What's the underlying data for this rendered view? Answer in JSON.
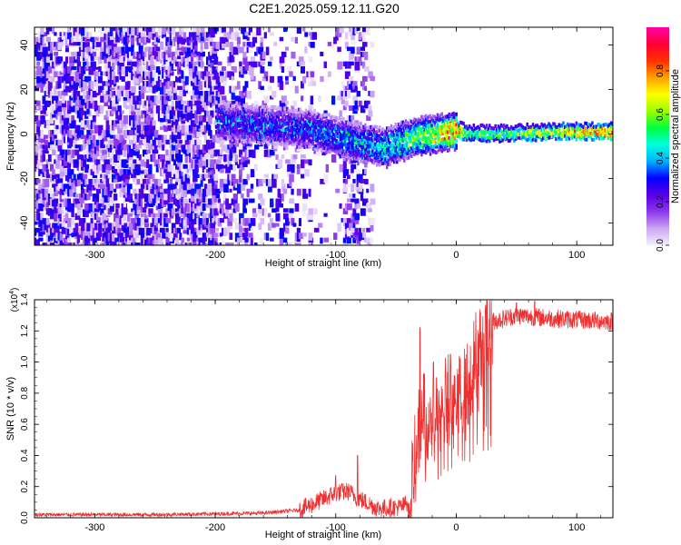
{
  "title": "C2E1.2025.059.12.11.G20",
  "chart_data": [
    {
      "type": "heatmap",
      "xlabel": "Height of straight line (km)",
      "ylabel": "Frequency (Hz)",
      "xlim": [
        -350,
        130
      ],
      "ylim": [
        -50,
        48
      ],
      "x_ticks": [
        -300,
        -200,
        -100,
        0,
        100
      ],
      "y_ticks": [
        -40,
        -20,
        0,
        20,
        40
      ],
      "colorbar": {
        "label": "Normalized spectral amplitude",
        "range": [
          0,
          1
        ],
        "ticks": [
          "0.0",
          "0.2",
          "0.4",
          "0.6",
          "0.8"
        ],
        "colors": [
          "#f4eefc",
          "#c9a6f3",
          "#8c37ec",
          "#5a00e6",
          "#0000ff",
          "#00b0ff",
          "#00ffdd",
          "#00ff40",
          "#9cff00",
          "#ffff00",
          "#ffa000",
          "#ff3000",
          "#ff0033",
          "#ff00aa"
        ]
      },
      "ridge": [
        {
          "x": -200,
          "freq": 6
        },
        {
          "x": -180,
          "freq": 5
        },
        {
          "x": -160,
          "freq": 4
        },
        {
          "x": -140,
          "freq": 3
        },
        {
          "x": -120,
          "freq": 2
        },
        {
          "x": -100,
          "freq": -1
        },
        {
          "x": -80,
          "freq": -4
        },
        {
          "x": -60,
          "freq": -6
        },
        {
          "x": -45,
          "freq": -3
        },
        {
          "x": -30,
          "freq": -1
        },
        {
          "x": -15,
          "freq": 0
        },
        {
          "x": 0,
          "freq": 2
        },
        {
          "x": 10,
          "freq": 0
        },
        {
          "x": 40,
          "freq": 0
        },
        {
          "x": 80,
          "freq": 1
        },
        {
          "x": 130,
          "freq": 1
        }
      ],
      "ridge_amplitude": [
        {
          "x": -200,
          "amp": 0.28
        },
        {
          "x": -150,
          "amp": 0.3
        },
        {
          "x": -120,
          "amp": 0.33
        },
        {
          "x": -90,
          "amp": 0.36
        },
        {
          "x": -60,
          "amp": 0.4
        },
        {
          "x": -40,
          "amp": 0.52
        },
        {
          "x": -20,
          "amp": 0.62
        },
        {
          "x": 0,
          "amp": 0.8
        },
        {
          "x": 10,
          "amp": 0.55
        },
        {
          "x": 40,
          "amp": 0.55
        },
        {
          "x": 80,
          "amp": 0.7
        },
        {
          "x": 130,
          "amp": 0.85
        }
      ]
    },
    {
      "type": "line",
      "xlabel": "Height of straight line (km)",
      "ylabel": "SNR (10 * v/v)",
      "scale_label": "(x10",
      "scale_exp": "4",
      "scale_close": ")",
      "xlim": [
        -350,
        130
      ],
      "ylim": [
        0,
        1.4
      ],
      "x_ticks": [
        -300,
        -200,
        -100,
        0,
        100
      ],
      "y_ticks": [
        "0.0",
        "0.2",
        "0.4",
        "0.6",
        "0.8",
        "1.0",
        "1.2",
        "1.4"
      ],
      "series": [
        {
          "color": "#ee3030",
          "envelope": [
            {
              "x": -350,
              "y": 0.02
            },
            {
              "x": -250,
              "y": 0.02
            },
            {
              "x": -200,
              "y": 0.025
            },
            {
              "x": -160,
              "y": 0.03
            },
            {
              "x": -130,
              "y": 0.05
            },
            {
              "x": -110,
              "y": 0.12
            },
            {
              "x": -100,
              "y": 0.16
            },
            {
              "x": -90,
              "y": 0.17
            },
            {
              "x": -80,
              "y": 0.12
            },
            {
              "x": -65,
              "y": 0.06
            },
            {
              "x": -45,
              "y": 0.07
            },
            {
              "x": -38,
              "y": 0.12
            },
            {
              "x": -32,
              "y": 0.5
            },
            {
              "x": -28,
              "y": 0.62
            },
            {
              "x": -20,
              "y": 0.68
            },
            {
              "x": -10,
              "y": 0.72
            },
            {
              "x": 0,
              "y": 0.82
            },
            {
              "x": 8,
              "y": 0.8
            },
            {
              "x": 12,
              "y": 0.95
            },
            {
              "x": 20,
              "y": 1.13
            },
            {
              "x": 30,
              "y": 1.26
            },
            {
              "x": 50,
              "y": 1.3
            },
            {
              "x": 80,
              "y": 1.28
            },
            {
              "x": 130,
              "y": 1.26
            }
          ],
          "peaks": [
            {
              "x": -100,
              "y": 0.27
            },
            {
              "x": -82,
              "y": 0.4
            },
            {
              "x": -30,
              "y": 1.22
            },
            {
              "x": -19,
              "y": 1.0
            },
            {
              "x": -5,
              "y": 1.05
            },
            {
              "x": 50,
              "y": 1.38
            },
            {
              "x": 65,
              "y": 1.39
            }
          ]
        }
      ]
    }
  ]
}
